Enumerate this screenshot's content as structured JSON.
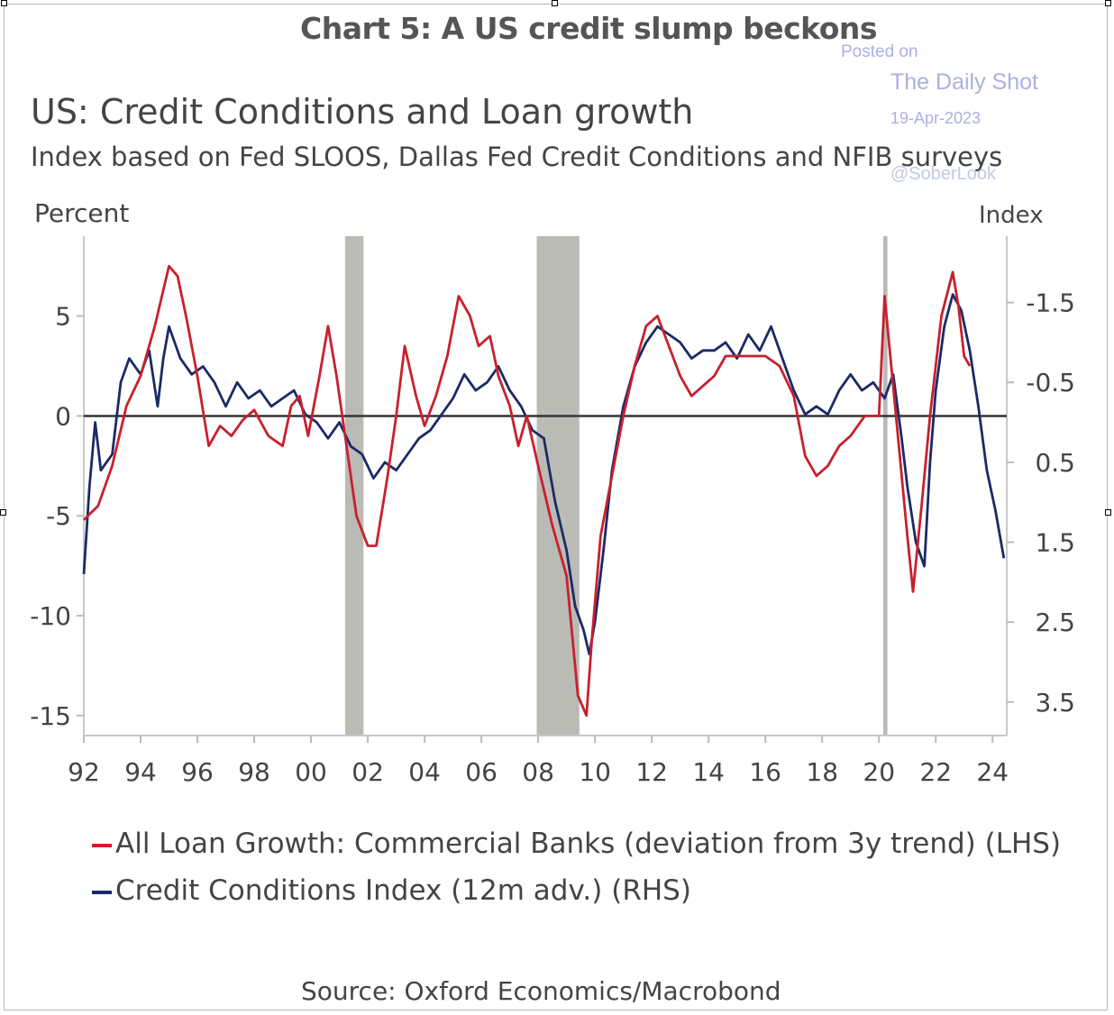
{
  "chart_data": {
    "type": "line",
    "title": "Chart 5: A US credit slump beckons",
    "subtitle": "US: Credit Conditions and Loan growth",
    "subtitle2": "Index based on Fed SLOOS, Dallas Fed Credit Conditions and NFIB surveys",
    "ylabel_left": "Percent",
    "ylabel_right": "Index",
    "source": "Source: Oxford Economics/Macrobond",
    "xlim": [
      1992,
      2024.5
    ],
    "ylim_left": [
      -16,
      9
    ],
    "ylim_right": [
      3.92,
      -2.33
    ],
    "right_axis_inverted": true,
    "x_ticks": [
      1992,
      1994,
      1996,
      1998,
      2000,
      2002,
      2004,
      2006,
      2008,
      2010,
      2012,
      2014,
      2016,
      2018,
      2020,
      2022,
      2024
    ],
    "x_tick_labels": [
      "92",
      "94",
      "96",
      "98",
      "00",
      "02",
      "04",
      "06",
      "08",
      "10",
      "12",
      "14",
      "16",
      "18",
      "20",
      "22",
      "24"
    ],
    "y_ticks_left": [
      5,
      0,
      -5,
      -10,
      -15
    ],
    "y_tick_labels_left": [
      "5",
      "0",
      "-5",
      "-10",
      "-15"
    ],
    "y_ticks_right": [
      -1.5,
      -0.5,
      0.5,
      1.5,
      2.5,
      3.5
    ],
    "y_tick_labels_right": [
      "-1.5",
      "-0.5",
      "0.5",
      "1.5",
      "2.5",
      "3.5"
    ],
    "zero_line": 0,
    "recessions": [
      [
        2001.2,
        2001.85
      ],
      [
        2007.95,
        2009.45
      ],
      [
        2020.15,
        2020.3
      ]
    ],
    "series": [
      {
        "name": "All Loan Growth: Commercial Banks (deviation from 3y trend) (LHS)",
        "axis": "left",
        "color": "#c8202e",
        "x": [
          1992.0,
          1992.5,
          1993.0,
          1993.5,
          1994.0,
          1994.5,
          1995.0,
          1995.3,
          1995.6,
          1996.0,
          1996.4,
          1996.8,
          1997.2,
          1997.6,
          1998.0,
          1998.5,
          1999.0,
          1999.3,
          1999.6,
          1999.9,
          2000.3,
          2000.6,
          2000.9,
          2001.2,
          2001.6,
          2002.0,
          2002.3,
          2002.7,
          2003.0,
          2003.3,
          2003.7,
          2004.0,
          2004.4,
          2004.8,
          2005.2,
          2005.6,
          2005.9,
          2006.3,
          2006.6,
          2007.0,
          2007.3,
          2007.6,
          2008.0,
          2008.5,
          2009.0,
          2009.4,
          2009.7,
          2009.9,
          2010.2,
          2010.6,
          2011.0,
          2011.4,
          2011.8,
          2012.2,
          2012.6,
          2013.0,
          2013.4,
          2013.8,
          2014.2,
          2014.6,
          2015.0,
          2015.5,
          2016.0,
          2016.5,
          2017.0,
          2017.4,
          2017.8,
          2018.2,
          2018.6,
          2019.0,
          2019.5,
          2020.0,
          2020.2,
          2020.4,
          2020.7,
          2021.0,
          2021.2,
          2021.5,
          2021.8,
          2022.2,
          2022.6,
          2022.8,
          2023.0,
          2023.2
        ],
        "values": [
          -5.2,
          -4.5,
          -2.5,
          0.5,
          2.0,
          4.5,
          7.5,
          7.0,
          5.0,
          2.0,
          -1.5,
          -0.5,
          -1.0,
          -0.2,
          0.3,
          -1.0,
          -1.5,
          0.5,
          1.0,
          -1.0,
          2.0,
          4.5,
          2.0,
          -1.0,
          -5.0,
          -6.5,
          -6.5,
          -3.0,
          0.0,
          3.5,
          1.0,
          -0.5,
          1.0,
          3.0,
          6.0,
          5.0,
          3.5,
          4.0,
          2.0,
          0.5,
          -1.5,
          0.0,
          -2.5,
          -5.5,
          -8.0,
          -14.0,
          -15.0,
          -11.0,
          -6.0,
          -3.0,
          0.0,
          2.5,
          4.5,
          5.0,
          3.5,
          2.0,
          1.0,
          1.5,
          2.0,
          3.0,
          3.0,
          3.0,
          3.0,
          2.5,
          1.0,
          -2.0,
          -3.0,
          -2.5,
          -1.5,
          -1.0,
          0.0,
          0.0,
          6.0,
          3.0,
          -1.5,
          -6.0,
          -8.8,
          -4.5,
          0.0,
          5.0,
          7.2,
          5.5,
          3.0,
          2.5
        ]
      },
      {
        "name": "Credit Conditions Index (12m adv.) (RHS)",
        "axis": "right",
        "color": "#1b2a66",
        "x": [
          1992.0,
          1992.2,
          1992.4,
          1992.6,
          1993.0,
          1993.3,
          1993.6,
          1994.0,
          1994.3,
          1994.6,
          1994.8,
          1995.0,
          1995.4,
          1995.8,
          1996.2,
          1996.6,
          1997.0,
          1997.4,
          1997.8,
          1998.2,
          1998.6,
          1999.0,
          1999.4,
          1999.8,
          2000.2,
          2000.6,
          2001.0,
          2001.4,
          2001.8,
          2002.2,
          2002.6,
          2003.0,
          2003.4,
          2003.8,
          2004.2,
          2004.6,
          2005.0,
          2005.4,
          2005.8,
          2006.2,
          2006.6,
          2007.0,
          2007.4,
          2007.8,
          2008.2,
          2008.6,
          2009.0,
          2009.3,
          2009.6,
          2009.8,
          2010.0,
          2010.3,
          2010.6,
          2011.0,
          2011.4,
          2011.8,
          2012.2,
          2012.6,
          2013.0,
          2013.4,
          2013.8,
          2014.2,
          2014.6,
          2015.0,
          2015.4,
          2015.8,
          2016.2,
          2016.6,
          2017.0,
          2017.4,
          2017.8,
          2018.2,
          2018.6,
          2019.0,
          2019.4,
          2019.8,
          2020.2,
          2020.5,
          2020.8,
          2021.0,
          2021.3,
          2021.6,
          2021.8,
          2022.0,
          2022.3,
          2022.6,
          2022.9,
          2023.2,
          2023.5,
          2023.8,
          2024.1,
          2024.4
        ],
        "values": [
          1.9,
          0.8,
          0.0,
          0.6,
          0.4,
          -0.5,
          -0.8,
          -0.6,
          -0.9,
          -0.2,
          -0.8,
          -1.2,
          -0.8,
          -0.6,
          -0.7,
          -0.5,
          -0.2,
          -0.5,
          -0.3,
          -0.4,
          -0.2,
          -0.3,
          -0.4,
          -0.1,
          0.0,
          0.2,
          0.0,
          0.3,
          0.4,
          0.7,
          0.5,
          0.6,
          0.4,
          0.2,
          0.1,
          -0.1,
          -0.3,
          -0.6,
          -0.4,
          -0.5,
          -0.7,
          -0.4,
          -0.2,
          0.1,
          0.2,
          1.0,
          1.6,
          2.3,
          2.6,
          2.9,
          2.5,
          1.6,
          0.6,
          -0.2,
          -0.7,
          -1.0,
          -1.2,
          -1.1,
          -1.0,
          -0.8,
          -0.9,
          -0.9,
          -1.0,
          -0.8,
          -1.1,
          -0.9,
          -1.2,
          -0.8,
          -0.4,
          -0.1,
          -0.2,
          -0.1,
          -0.4,
          -0.6,
          -0.4,
          -0.5,
          -0.3,
          -0.6,
          0.2,
          0.8,
          1.5,
          1.8,
          0.5,
          -0.4,
          -1.2,
          -1.6,
          -1.4,
          -0.9,
          -0.2,
          0.6,
          1.1,
          1.7
        ]
      }
    ]
  },
  "watermark": {
    "posted": "Posted on",
    "site": "The Daily Shot",
    "date": "19-Apr-2023",
    "handle": "@SoberLook"
  }
}
